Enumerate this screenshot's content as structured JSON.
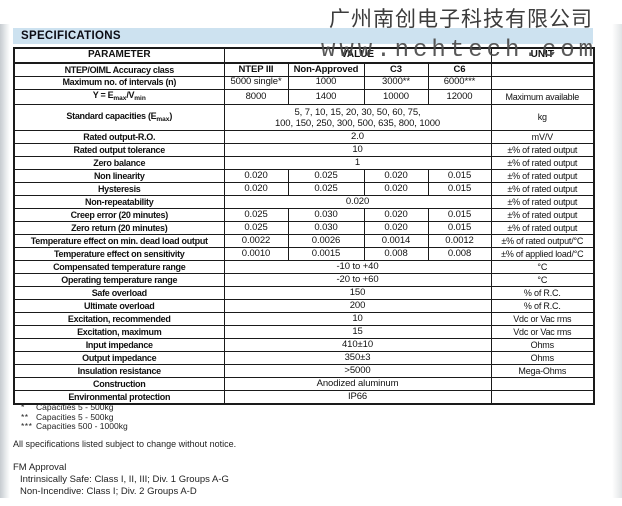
{
  "watermark": {
    "company": "广州南创电子科技有限公司",
    "website": "www.nchtech.com"
  },
  "section_title": "SPECIFICATIONS",
  "colors": {
    "title_band_bg": "#cde2f0",
    "table_border": "#1a1a1a",
    "watermark_text": "#3c3c3c"
  },
  "table": {
    "headers": {
      "parameter": "PARAMETER",
      "value": "VALUE",
      "unit": "UNIT"
    },
    "rows": [
      {
        "param": "NTEP/OIML Accuracy class",
        "values": [
          "NTEP III",
          "Non-Approved",
          "C3",
          "C6"
        ],
        "unit": "",
        "bold_values": true
      },
      {
        "param": "Maximum no. of intervals (n)",
        "values": [
          "5000 single*",
          "1000",
          "3000**",
          "6000***"
        ],
        "unit": ""
      },
      {
        "param": "Y = E{max}/V{min}",
        "values": [
          "8000",
          "1400",
          "10000",
          "12000"
        ],
        "unit": "Maximum available"
      },
      {
        "param": "Standard capacities (E{max})",
        "span": "5, 7, 10, 15, 20, 30, 50, 60, 75,\n100, 150, 250, 300, 500, 635, 800, 1000",
        "unit": "kg",
        "tall": true
      },
      {
        "param": "Rated output-R.O.",
        "span": "2.0",
        "unit": "mV/V"
      },
      {
        "param": "Rated output tolerance",
        "span": "10",
        "unit": "±% of rated output"
      },
      {
        "param": "Zero balance",
        "span": "1",
        "unit": "±% of rated output"
      },
      {
        "param": "Non linearity",
        "values": [
          "0.020",
          "0.025",
          "0.020",
          "0.015"
        ],
        "unit": "±% of rated output"
      },
      {
        "param": "Hysteresis",
        "values": [
          "0.020",
          "0.025",
          "0.020",
          "0.015"
        ],
        "unit": "±% of rated output"
      },
      {
        "param": "Non-repeatability",
        "span": "0.020",
        "unit": "±% of rated output"
      },
      {
        "param": "Creep error (20 minutes)",
        "values": [
          "0.025",
          "0.030",
          "0.020",
          "0.015"
        ],
        "unit": "±% of rated output"
      },
      {
        "param": "Zero return (20 minutes)",
        "values": [
          "0.025",
          "0.030",
          "0.020",
          "0.015"
        ],
        "unit": "±% of rated output"
      },
      {
        "param": "Temperature effect on min. dead load output",
        "values": [
          "0.0022",
          "0.0026",
          "0.0014",
          "0.0012"
        ],
        "unit": "±% of rated output/°C"
      },
      {
        "param": "Temperature effect on sensitivity",
        "values": [
          "0.0010",
          "0.0015",
          "0.008",
          "0.008"
        ],
        "unit": "±% of applied load/°C"
      },
      {
        "param": "Compensated temperature range",
        "span": "-10 to +40",
        "unit": "°C"
      },
      {
        "param": "Operating temperature range",
        "span": "-20 to +60",
        "unit": "°C"
      },
      {
        "param": "Safe overload",
        "span": "150",
        "unit": "% of R.C."
      },
      {
        "param": "Ultimate overload",
        "span": "200",
        "unit": "% of R.C."
      },
      {
        "param": "Excitation, recommended",
        "span": "10",
        "unit": "Vdc or Vac rms"
      },
      {
        "param": "Excitation, maximum",
        "span": "15",
        "unit": "Vdc or Vac rms"
      },
      {
        "param": "Input impedance",
        "span": "410±10",
        "unit": "Ohms"
      },
      {
        "param": "Output impedance",
        "span": "350±3",
        "unit": "Ohms"
      },
      {
        "param": "Insulation resistance",
        "span": ">5000",
        "unit": "Mega-Ohms"
      },
      {
        "param": "Construction",
        "span": "Anodized aluminum",
        "unit": ""
      },
      {
        "param": "Environmental protection",
        "span": "IP66",
        "unit": ""
      }
    ]
  },
  "footnotes": [
    {
      "marker": "*",
      "text": "Capacities 5 - 500kg"
    },
    {
      "marker": "**",
      "text": "Capacities 5 - 500kg"
    },
    {
      "marker": "***",
      "text": "Capacities 500 - 1000kg"
    }
  ],
  "disclaimer": "All specifications listed subject to change without notice.",
  "fm_approval": {
    "title": "FM Approval",
    "lines": [
      "Intrinsically Safe: Class I, II, III; Div. 1 Groups A-G",
      "Non-Incendive: Class I; Div. 2 Groups A-D"
    ]
  }
}
